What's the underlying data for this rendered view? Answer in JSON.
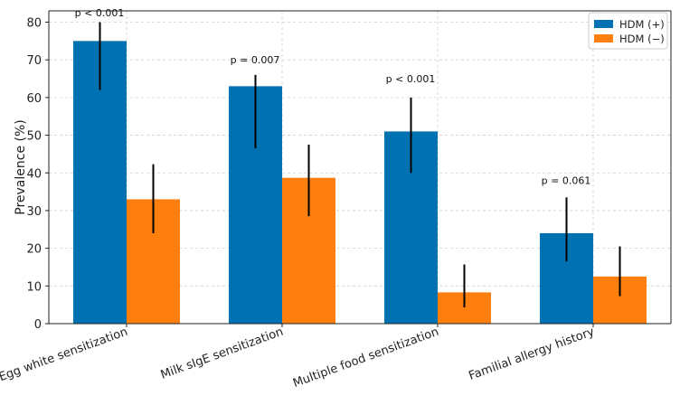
{
  "chart_data": {
    "type": "bar",
    "title": "",
    "xlabel": "",
    "ylabel": "Prevalence (%)",
    "ylim": [
      0,
      83
    ],
    "yticks": [
      0,
      10,
      20,
      30,
      40,
      50,
      60,
      70,
      80
    ],
    "grid": true,
    "legend_position": "top-right",
    "categories": [
      "Egg white sensitization",
      "Milk sIgE sensitization",
      "Multiple food sensitization",
      "Familial allergy history"
    ],
    "series": [
      {
        "name": "HDM (+)",
        "color": "#0072B2",
        "values": [
          75,
          63,
          51,
          24
        ],
        "err_low": [
          62,
          46.5,
          40,
          16.5
        ],
        "err_high": [
          80,
          66,
          60,
          33.5
        ]
      },
      {
        "name": "HDM (−)",
        "color": "#FF7F0E",
        "values": [
          33,
          38.7,
          8.3,
          12.5
        ],
        "err_low": [
          24,
          28.5,
          4.3,
          7.3
        ],
        "err_high": [
          42.3,
          47.5,
          15.7,
          20.5
        ]
      }
    ],
    "annotations": [
      {
        "category_index": 0,
        "label": "p < 0.001",
        "y": 82.5
      },
      {
        "category_index": 1,
        "label": "p = 0.007",
        "y": 70
      },
      {
        "category_index": 2,
        "label": "p < 0.001",
        "y": 65
      },
      {
        "category_index": 3,
        "label": "p = 0.061",
        "y": 38
      }
    ]
  }
}
